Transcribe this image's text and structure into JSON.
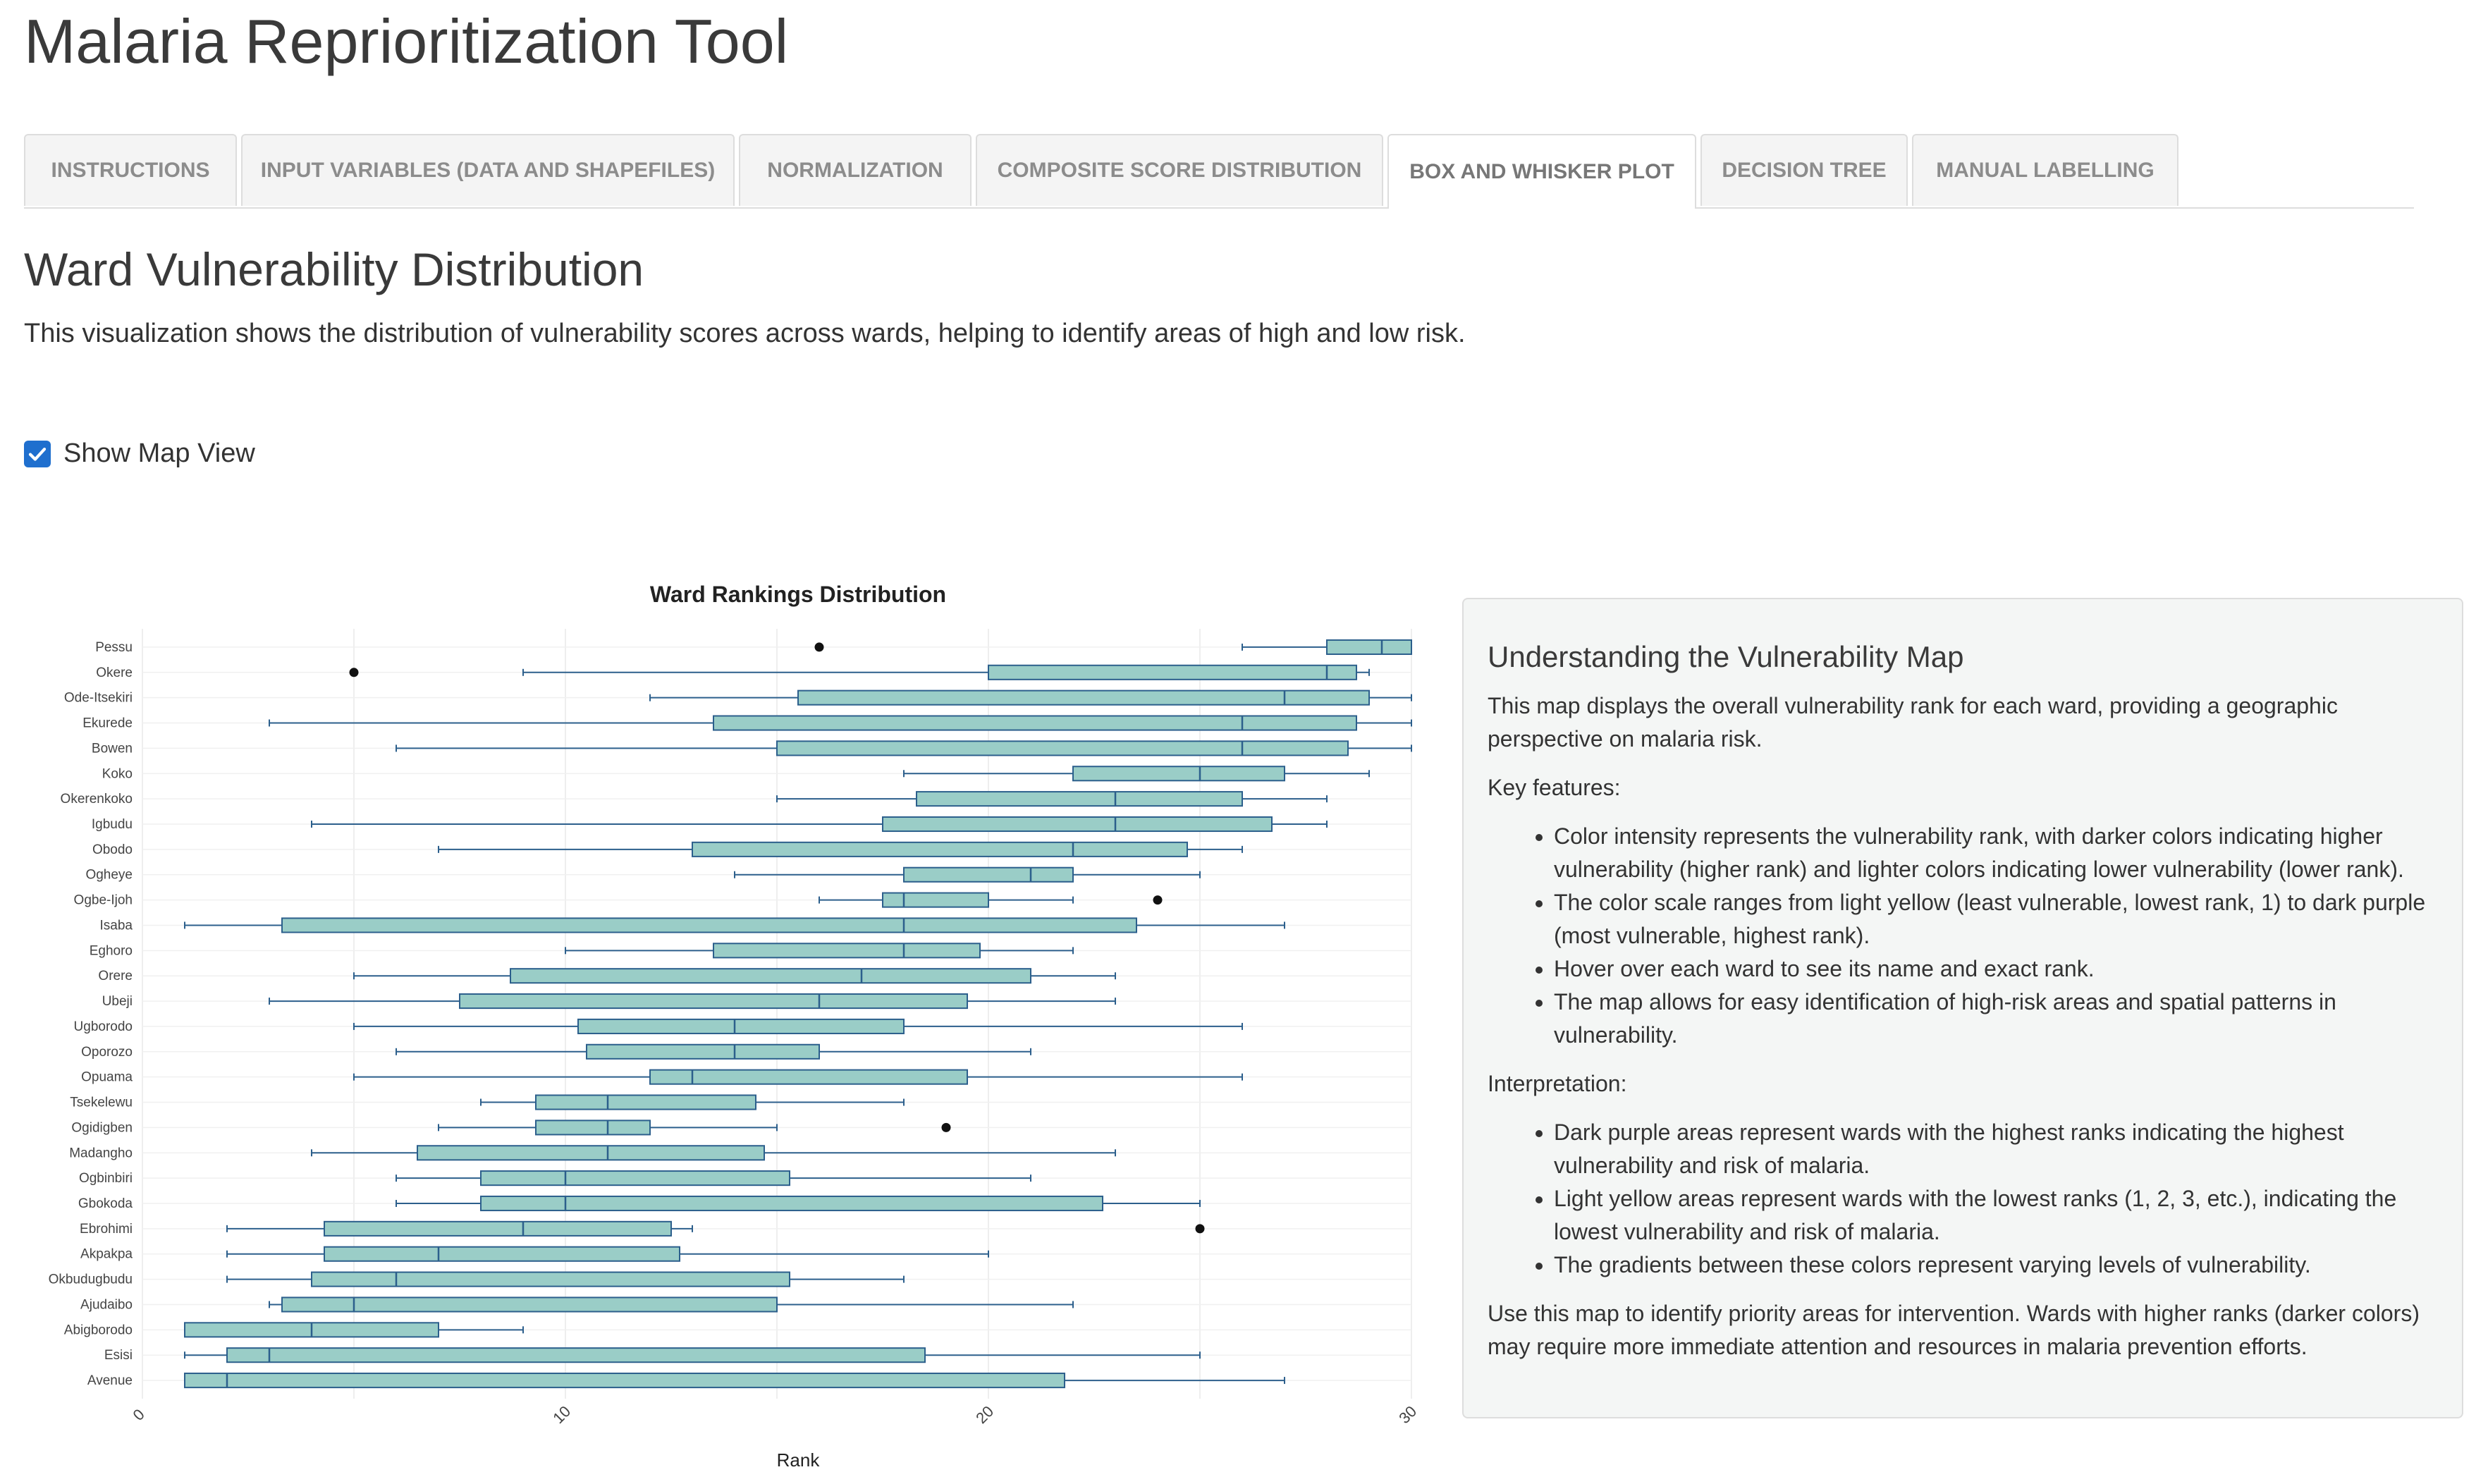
{
  "app": {
    "title": "Malaria Reprioritization Tool"
  },
  "tabs": [
    {
      "label": "INSTRUCTIONS"
    },
    {
      "label": "INPUT VARIABLES (DATA AND SHAPEFILES)"
    },
    {
      "label": "NORMALIZATION"
    },
    {
      "label": "COMPOSITE SCORE DISTRIBUTION"
    },
    {
      "label": "BOX AND WHISKER PLOT",
      "active": true
    },
    {
      "label": "DECISION TREE"
    },
    {
      "label": "MANUAL LABELLING"
    }
  ],
  "page": {
    "title": "Ward Vulnerability Distribution",
    "description": "This visualization shows the distribution of vulnerability scores across wards, helping to identify areas of high and low risk."
  },
  "map_toggle": {
    "label": "Show Map View",
    "checked": true,
    "color": "#1f6fce"
  },
  "chart_data": {
    "type": "box",
    "title": "Ward Rankings Distribution",
    "xlabel": "Rank",
    "ylabel": "",
    "xlim": [
      0,
      30
    ],
    "xticks": [
      "0",
      "10",
      "20",
      "30"
    ],
    "grid": true,
    "box_fill": "#9acdc7",
    "box_stroke": "#2c5f8c",
    "series": [
      {
        "name": "Pessu",
        "min": 26,
        "q1": 28,
        "median": 29.3,
        "q3": 30,
        "max": 30,
        "outliers": [
          16
        ]
      },
      {
        "name": "Okere",
        "min": 9,
        "q1": 20,
        "median": 28,
        "q3": 28.7,
        "max": 29,
        "outliers": [
          5
        ]
      },
      {
        "name": "Ode-Itsekiri",
        "min": 12,
        "q1": 15.5,
        "median": 27,
        "q3": 29,
        "max": 30,
        "outliers": []
      },
      {
        "name": "Ekurede",
        "min": 3,
        "q1": 13.5,
        "median": 26,
        "q3": 28.7,
        "max": 30,
        "outliers": []
      },
      {
        "name": "Bowen",
        "min": 6,
        "q1": 15,
        "median": 26,
        "q3": 28.5,
        "max": 30,
        "outliers": []
      },
      {
        "name": "Koko",
        "min": 18,
        "q1": 22,
        "median": 25,
        "q3": 27,
        "max": 29,
        "outliers": []
      },
      {
        "name": "Okerenkoko",
        "min": 15,
        "q1": 18.3,
        "median": 23,
        "q3": 26,
        "max": 28,
        "outliers": []
      },
      {
        "name": "Igbudu",
        "min": 4,
        "q1": 17.5,
        "median": 23,
        "q3": 26.7,
        "max": 28,
        "outliers": []
      },
      {
        "name": "Obodo",
        "min": 7,
        "q1": 13,
        "median": 22,
        "q3": 24.7,
        "max": 26,
        "outliers": []
      },
      {
        "name": "Ogheye",
        "min": 14,
        "q1": 18,
        "median": 21,
        "q3": 22,
        "max": 25,
        "outliers": []
      },
      {
        "name": "Ogbe-Ijoh",
        "min": 16,
        "q1": 17.5,
        "median": 18,
        "q3": 20,
        "max": 22,
        "outliers": [
          24
        ]
      },
      {
        "name": "Isaba",
        "min": 1,
        "q1": 3.3,
        "median": 18,
        "q3": 23.5,
        "max": 27,
        "outliers": []
      },
      {
        "name": "Eghoro",
        "min": 10,
        "q1": 13.5,
        "median": 18,
        "q3": 19.8,
        "max": 22,
        "outliers": []
      },
      {
        "name": "Orere",
        "min": 5,
        "q1": 8.7,
        "median": 17,
        "q3": 21,
        "max": 23,
        "outliers": []
      },
      {
        "name": "Ubeji",
        "min": 3,
        "q1": 7.5,
        "median": 16,
        "q3": 19.5,
        "max": 23,
        "outliers": []
      },
      {
        "name": "Ugborodo",
        "min": 5,
        "q1": 10.3,
        "median": 14,
        "q3": 18,
        "max": 26,
        "outliers": []
      },
      {
        "name": "Oporozo",
        "min": 6,
        "q1": 10.5,
        "median": 14,
        "q3": 16,
        "max": 21,
        "outliers": []
      },
      {
        "name": "Opuama",
        "min": 5,
        "q1": 12,
        "median": 13,
        "q3": 19.5,
        "max": 26,
        "outliers": []
      },
      {
        "name": "Tsekelewu",
        "min": 8,
        "q1": 9.3,
        "median": 11,
        "q3": 14.5,
        "max": 18,
        "outliers": []
      },
      {
        "name": "Ogidigben",
        "min": 7,
        "q1": 9.3,
        "median": 11,
        "q3": 12,
        "max": 15,
        "outliers": [
          19
        ]
      },
      {
        "name": "Madangho",
        "min": 4,
        "q1": 6.5,
        "median": 11,
        "q3": 14.7,
        "max": 23,
        "outliers": []
      },
      {
        "name": "Ogbinbiri",
        "min": 6,
        "q1": 8,
        "median": 10,
        "q3": 15.3,
        "max": 21,
        "outliers": []
      },
      {
        "name": "Gbokoda",
        "min": 6,
        "q1": 8,
        "median": 10,
        "q3": 22.7,
        "max": 25,
        "outliers": []
      },
      {
        "name": "Ebrohimi",
        "min": 2,
        "q1": 4.3,
        "median": 9,
        "q3": 12.5,
        "max": 13,
        "outliers": [
          25
        ]
      },
      {
        "name": "Akpakpa",
        "min": 2,
        "q1": 4.3,
        "median": 7,
        "q3": 12.7,
        "max": 20,
        "outliers": []
      },
      {
        "name": "Okbudugbudu",
        "min": 2,
        "q1": 4,
        "median": 6,
        "q3": 15.3,
        "max": 18,
        "outliers": []
      },
      {
        "name": "Ajudaibo",
        "min": 3,
        "q1": 3.3,
        "median": 5,
        "q3": 15,
        "max": 22,
        "outliers": []
      },
      {
        "name": "Abigborodo",
        "min": 1,
        "q1": 1,
        "median": 4,
        "q3": 7,
        "max": 9,
        "outliers": []
      },
      {
        "name": "Esisi",
        "min": 1,
        "q1": 2,
        "median": 3,
        "q3": 18.5,
        "max": 25,
        "outliers": []
      },
      {
        "name": "Avenue",
        "min": 1,
        "q1": 1,
        "median": 2,
        "q3": 21.8,
        "max": 27,
        "outliers": []
      }
    ]
  },
  "info": {
    "title": "Understanding the Vulnerability Map",
    "intro": "This map displays the overall vulnerability rank for each ward, providing a geographic perspective on malaria risk.",
    "key_features_label": "Key features:",
    "key_features": [
      "Color intensity represents the vulnerability rank, with darker colors indicating higher vulnerability (higher rank) and lighter colors indicating lower vulnerability (lower rank).",
      "The color scale ranges from light yellow (least vulnerable, lowest rank, 1) to dark purple (most vulnerable, highest rank).",
      "Hover over each ward to see its name and exact rank.",
      "The map allows for easy identification of high-risk areas and spatial patterns in vulnerability."
    ],
    "interpretation_label": "Interpretation:",
    "interpretation": [
      "Dark purple areas represent wards with the highest ranks indicating the highest vulnerability and risk of malaria.",
      "Light yellow areas represent wards with the lowest ranks (1, 2, 3, etc.), indicating the lowest vulnerability and risk of malaria.",
      "The gradients between these colors represent varying levels of vulnerability."
    ],
    "closing": "Use this map to identify priority areas for intervention. Wards with higher ranks (darker colors) may require more immediate attention and resources in malaria prevention efforts."
  }
}
